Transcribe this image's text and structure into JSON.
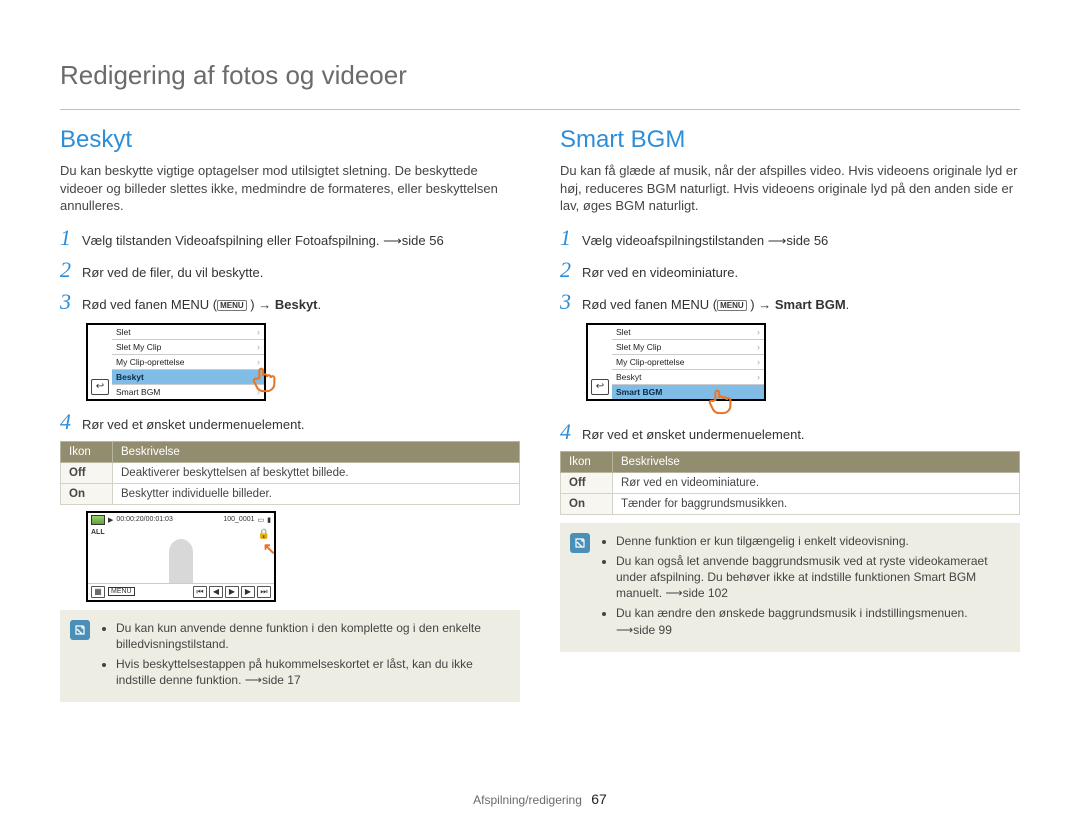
{
  "page": {
    "title": "Redigering af fotos og videoer",
    "footer_section": "Afspilning/redigering",
    "footer_page": "67"
  },
  "menuBadge": "MENU",
  "arrowGlyph": "→",
  "left": {
    "heading": "Beskyt",
    "intro": "Du kan beskytte vigtige optagelser mod utilsigtet sletning. De beskyttede videoer og billeder slettes ikke, medmindre de formateres, eller beskyttelsen annulleres.",
    "steps": {
      "s1": "Vælg tilstanden Videoafspilning eller Fotoafspilning. ⟶side 56",
      "s2": "Rør ved de filer, du vil beskytte.",
      "s3a": "Rød ved fanen MENU (",
      "s3c": "Beskyt",
      "s3cSuffix": ".",
      "s4": "Rør ved et ønsket undermenuelement."
    },
    "menu": {
      "items": [
        "Slet",
        "Slet My Clip",
        "My Clip-oprettelse",
        "Beskyt",
        "Smart BGM"
      ],
      "selectedIndex": 3
    },
    "table": {
      "hIcon": "Ikon",
      "hDesc": "Beskrivelse",
      "rows": [
        {
          "k": "Off",
          "v": "Deaktiverer beskyttelsen af beskyttet billede."
        },
        {
          "k": "On",
          "v": "Beskytter individuelle billeder."
        }
      ]
    },
    "vid": {
      "timecode": "00:00:20/00:01:03",
      "counter": "100_0001"
    },
    "note": [
      "Du kan kun anvende denne funktion i den komplette og i den enkelte billedvisningstilstand.",
      "Hvis beskyttelsestappen på hukommelseskortet er låst, kan du ikke indstille denne funktion. ⟶side 17"
    ]
  },
  "right": {
    "heading": "Smart BGM",
    "intro": "Du kan få glæde af musik, når der afspilles video. Hvis videoens originale lyd er høj, reduceres BGM naturligt. Hvis videoens originale lyd på den anden side er lav, øges BGM naturligt.",
    "steps": {
      "s1": "Vælg videoafspilningstilstanden ⟶side 56",
      "s2": "Rør ved en videominiature.",
      "s3a": "Rød ved fanen MENU (",
      "s3c": "Smart BGM",
      "s3cSuffix": ".",
      "s4": "Rør ved et ønsket undermenuelement."
    },
    "menu": {
      "items": [
        "Slet",
        "Slet My Clip",
        "My Clip-oprettelse",
        "Beskyt",
        "Smart BGM"
      ],
      "selectedIndex": 4
    },
    "table": {
      "hIcon": "Ikon",
      "hDesc": "Beskrivelse",
      "rows": [
        {
          "k": "Off",
          "v": "Rør ved en videominiature."
        },
        {
          "k": "On",
          "v": "Tænder for baggrundsmusikken."
        }
      ]
    },
    "note": [
      "Denne funktion er kun tilgængelig i enkelt videovisning.",
      "Du kan også let anvende baggrundsmusik ved at ryste videokameraet under afspilning. Du behøver ikke at indstille funktionen Smart BGM manuelt. ⟶side 102",
      "Du kan ændre den ønskede baggrundsmusik i indstillingsmenuen. ⟶side 99"
    ]
  }
}
